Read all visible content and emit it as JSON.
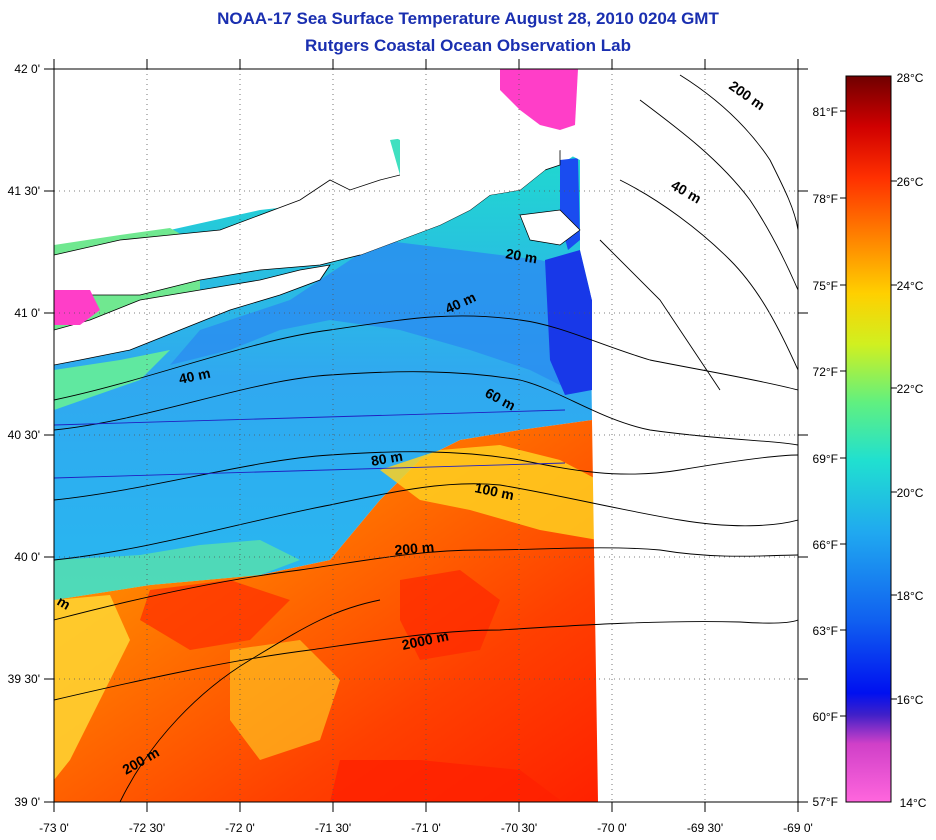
{
  "title": "NOAA-17 Sea Surface Temperature August 28, 2010 0204 GMT",
  "subtitle": "Rutgers Coastal Ocean Observation Lab",
  "map": {
    "lon_ticks": [
      "-73 0'",
      "-72 30'",
      "-72 0'",
      "-71 30'",
      "-71 0'",
      "-70 30'",
      "-70 0'",
      "-69 30'",
      "-69 0'"
    ],
    "lat_ticks": [
      "42 0'",
      "41 30'",
      "41 0'",
      "40 30'",
      "40 0'",
      "39 30'",
      "39 0'"
    ],
    "lon_range": [
      -73,
      -69
    ],
    "lat_range": [
      39,
      42
    ],
    "grid": "dotted",
    "contour_labels": [
      "200 m",
      "40 m",
      "20 m",
      "40 m",
      "40 m",
      "60 m",
      "80 m",
      "100 m",
      "200 m",
      "2000 m",
      "200 m",
      "m"
    ]
  },
  "colorbar": {
    "celsius_labels": [
      "28°C",
      "26°C",
      "24°C",
      "22°C",
      "20°C",
      "18°C",
      "16°C",
      "14°C"
    ],
    "fahrenheit_labels": [
      "81°F",
      "78°F",
      "75°F",
      "72°F",
      "69°F",
      "66°F",
      "63°F",
      "60°F",
      "57°F"
    ],
    "range_c": [
      14,
      28
    ],
    "colors": [
      "#7a0000",
      "#e00000",
      "#ff5a00",
      "#ffb400",
      "#f0f000",
      "#80f060",
      "#20e0d0",
      "#20a0f0",
      "#1030f0",
      "#0000d0",
      "#8020c0",
      "#ff40c0",
      "#ff70e0"
    ]
  }
}
